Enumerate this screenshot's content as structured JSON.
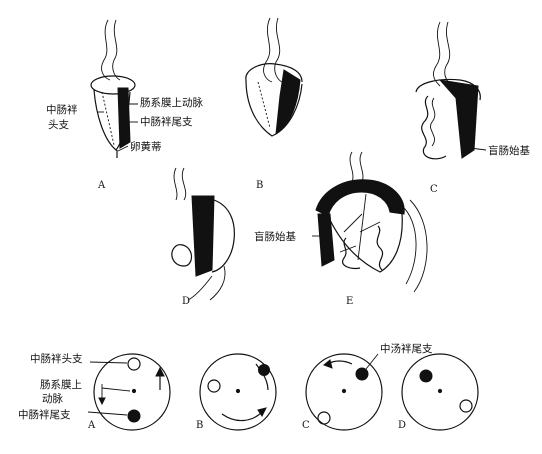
{
  "top_labels": {
    "midgut_head_branch": [
      "中肠袢",
      "头支"
    ],
    "sma": "肠系膜上动脉",
    "midgut_tail_branch": "中肠袢尾支",
    "yolk_stalk": "卵黄蒂",
    "cecal_bud_c": "盲肠始基",
    "cecal_bud_e": "盲肠始基"
  },
  "top_panels": [
    "A",
    "B",
    "C",
    "D",
    "E"
  ],
  "bottom_labels": {
    "head_branch": "中肠袢头支",
    "sma": [
      "肠系膜上",
      "动脉"
    ],
    "tail_branch_a": "中肠袢尾支",
    "tail_branch_c": "中汤袢尾支"
  },
  "bottom_panels": [
    "A",
    "B",
    "C",
    "D"
  ],
  "colors": {
    "ink": "#111111",
    "background": "#ffffff"
  }
}
